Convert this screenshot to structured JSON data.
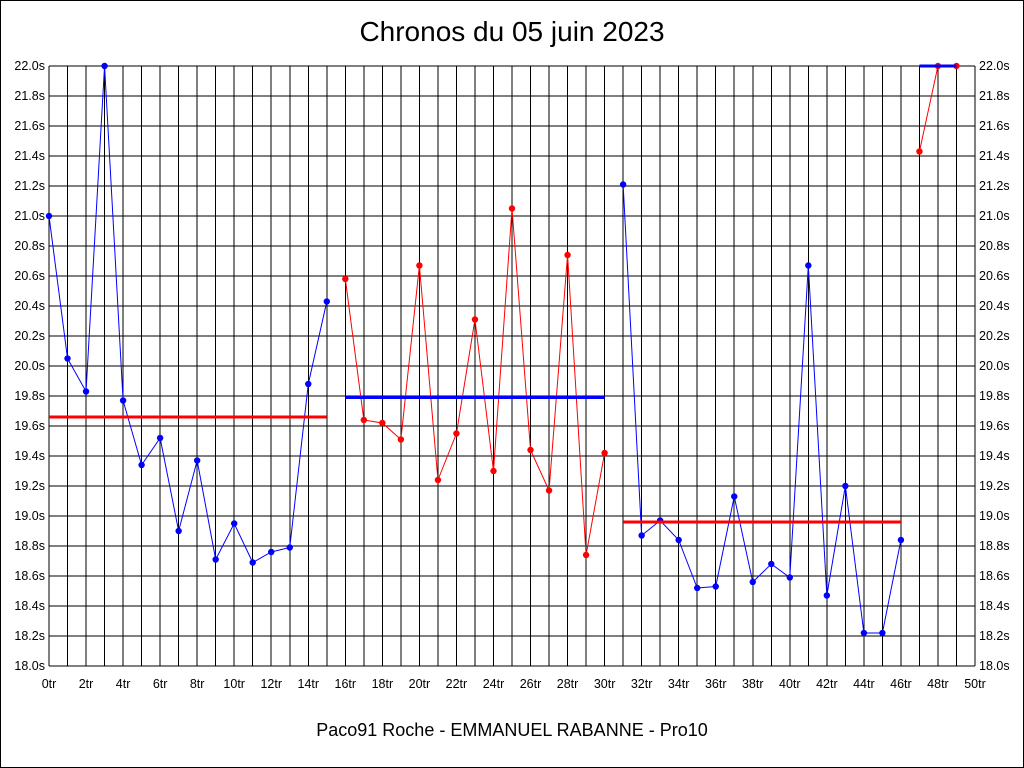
{
  "chart_data": {
    "type": "line",
    "title": "Chronos du 05 juin 2023",
    "subtitle": "Paco91 Roche - EMMANUEL RABANNE - Pro10",
    "xlabel": "",
    "ylabel": "",
    "xlim": [
      0,
      50
    ],
    "ylim": [
      18.0,
      22.0
    ],
    "grid": true,
    "y_ticks": [
      "18.0s",
      "18.2s",
      "18.4s",
      "18.6s",
      "18.8s",
      "19.0s",
      "19.2s",
      "19.4s",
      "19.6s",
      "19.8s",
      "20.0s",
      "20.2s",
      "20.4s",
      "20.6s",
      "20.8s",
      "21.0s",
      "21.2s",
      "21.4s",
      "21.6s",
      "21.8s",
      "22.0s"
    ],
    "x_ticks": [
      "0tr",
      "2tr",
      "4tr",
      "6tr",
      "8tr",
      "10tr",
      "12tr",
      "14tr",
      "16tr",
      "18tr",
      "20tr",
      "22tr",
      "24tr",
      "26tr",
      "28tr",
      "30tr",
      "32tr",
      "34tr",
      "36tr",
      "38tr",
      "40tr",
      "42tr",
      "44tr",
      "46tr",
      "48tr",
      "50tr"
    ],
    "series": [
      {
        "color": "#0000ff",
        "x": [
          0,
          1,
          2,
          3,
          4,
          5,
          6,
          7,
          8,
          9,
          10,
          11,
          12,
          13,
          14,
          15
        ],
        "y": [
          21.0,
          20.05,
          19.83,
          22.0,
          19.77,
          19.34,
          19.52,
          18.9,
          19.37,
          18.71,
          18.95,
          18.69,
          18.76,
          18.79,
          19.88,
          20.43
        ],
        "average": {
          "value": 19.66,
          "x": [
            0,
            15
          ],
          "color": "#ff0000"
        }
      },
      {
        "color": "#ff0000",
        "x": [
          16,
          17,
          18,
          19,
          20,
          21,
          22,
          23,
          24,
          25,
          26,
          27,
          28,
          29,
          30
        ],
        "y": [
          20.58,
          19.64,
          19.62,
          19.51,
          20.67,
          19.24,
          19.55,
          20.31,
          19.3,
          21.05,
          19.44,
          19.17,
          20.74,
          18.74,
          19.42
        ],
        "average": {
          "value": 19.79,
          "x": [
            16,
            30
          ],
          "color": "#0000ff"
        }
      },
      {
        "color": "#0000ff",
        "x": [
          31,
          32,
          33,
          34,
          35,
          36,
          37,
          38,
          39,
          40,
          41,
          42,
          43,
          44,
          45,
          46
        ],
        "y": [
          21.21,
          18.87,
          18.97,
          18.84,
          18.52,
          18.53,
          19.13,
          18.56,
          18.68,
          18.59,
          20.67,
          18.47,
          19.2,
          18.22,
          18.22,
          18.84
        ],
        "average": {
          "value": 18.96,
          "x": [
            31,
            46
          ],
          "color": "#ff0000"
        }
      },
      {
        "color": "#ff0000",
        "x": [
          47,
          48,
          49
        ],
        "y": [
          21.43,
          22.0,
          22.0
        ],
        "average": {
          "value": 22.0,
          "x": [
            47,
            49
          ],
          "color": "#0000ff"
        }
      }
    ]
  }
}
